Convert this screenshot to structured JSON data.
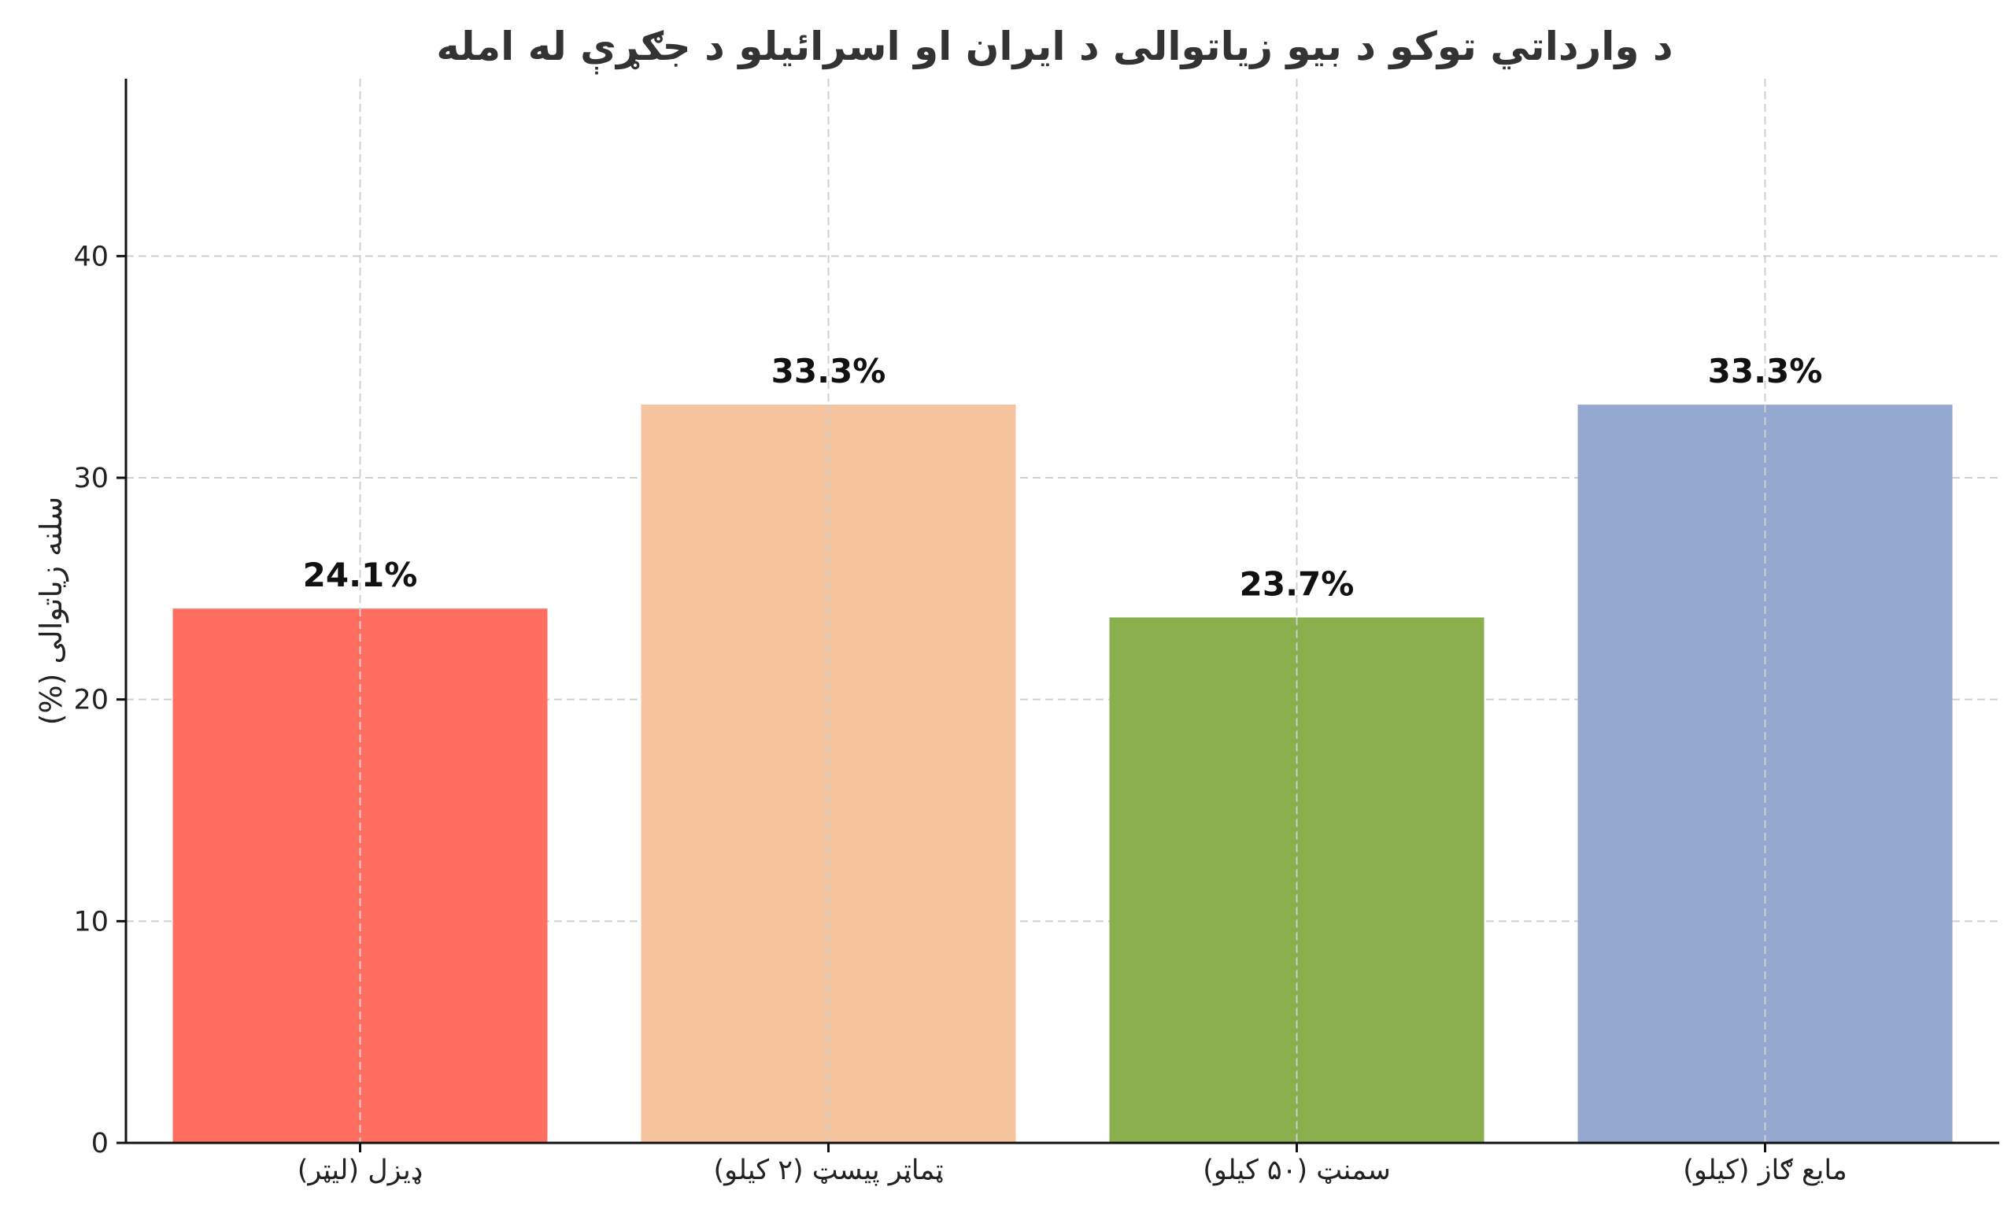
{
  "chart_data": {
    "type": "bar",
    "title": "د وارداتي توکو د بیو زیاتوالی د ایران او اسرائیلو د جګړې له امله",
    "xlabel": "",
    "ylabel": "سلنه زیاتوالی (%)",
    "categories": [
      "ډیزل (لیټر)",
      "ټماټر پیسټ (۲ کیلو)",
      "سمنټ (۵۰ کیلو)",
      "مایع ګاز (کیلو)"
    ],
    "values": [
      24.1,
      33.3,
      23.7,
      33.3
    ],
    "value_labels": [
      "24.1%",
      "33.3%",
      "23.7%",
      "33.3%"
    ],
    "colors": [
      "#FF6F61",
      "#F6C49E",
      "#8AB04D",
      "#94A8D0"
    ],
    "ylim": [
      0,
      48
    ],
    "yticks": [
      0,
      10,
      20,
      30,
      40
    ],
    "grid": true
  }
}
